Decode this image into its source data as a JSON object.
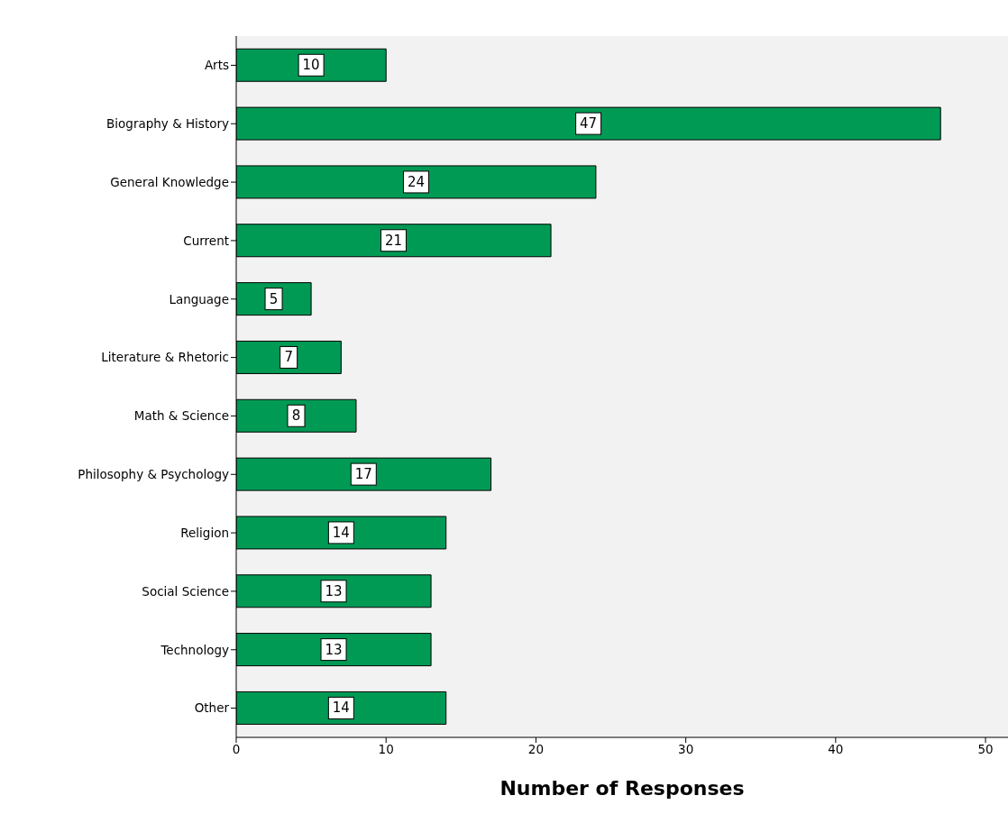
{
  "chart_data": {
    "type": "bar",
    "orientation": "horizontal",
    "xlabel": "Number of Responses",
    "categories": [
      "Arts",
      "Biography & History",
      "General Knowledge",
      "Current",
      "Language",
      "Literature & Rhetoric",
      "Math & Science",
      "Philosophy & Psychology",
      "Religion",
      "Social Science",
      "Technology",
      "Other"
    ],
    "values": [
      10,
      47,
      24,
      21,
      5,
      7,
      8,
      17,
      14,
      13,
      13,
      14
    ],
    "color": "#009a55",
    "xlim": [
      0,
      51.5
    ],
    "xticks": [
      0,
      10,
      20,
      30,
      40,
      50
    ],
    "data_labels": true,
    "grid": false
  }
}
